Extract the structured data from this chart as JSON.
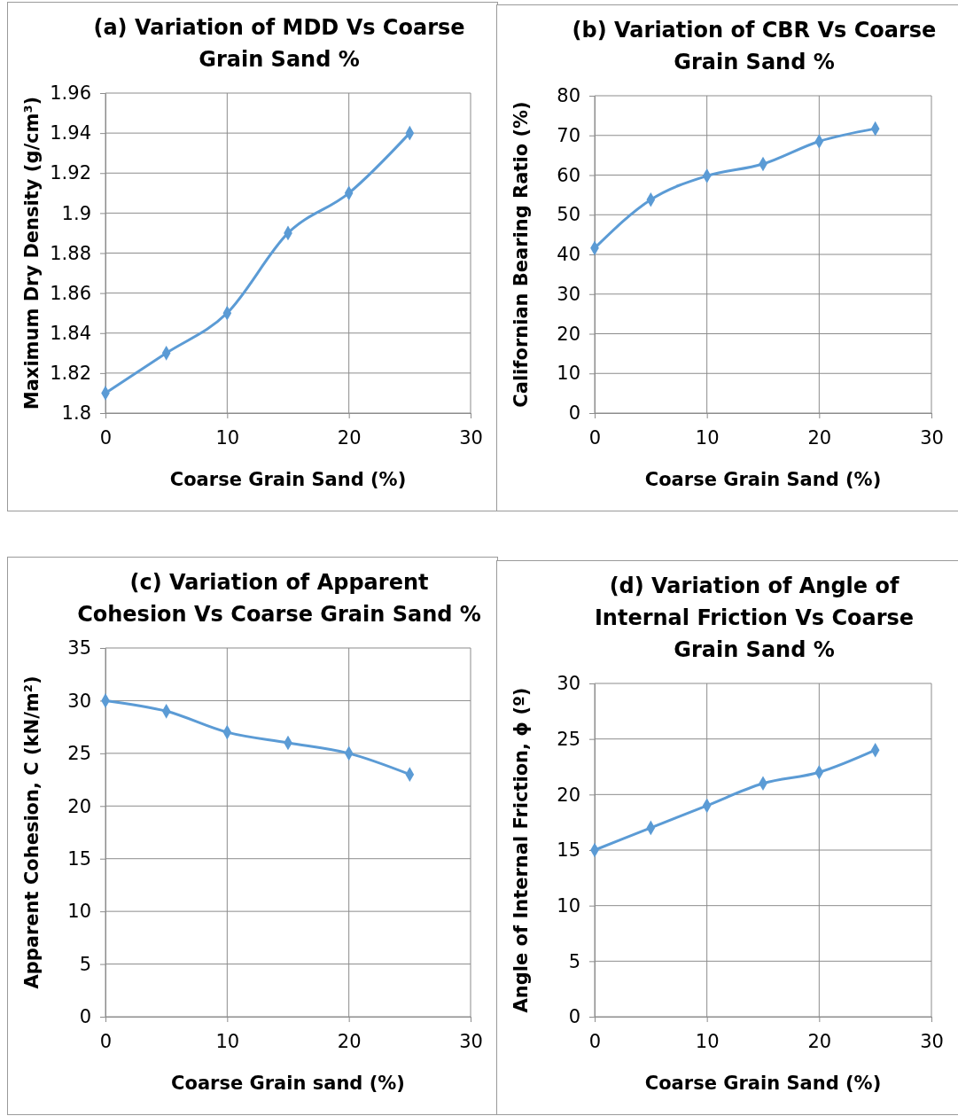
{
  "chart_data": [
    {
      "type": "line",
      "title": "(a) Variation of MDD Vs Coarse Grain Sand %",
      "xlabel": "Coarse Grain Sand (%)",
      "ylabel": "Maximum Dry Density (g/cm³)",
      "x": [
        0,
        5,
        10,
        15,
        20,
        25
      ],
      "series": [
        {
          "color": "#5b9bd5",
          "values": [
            1.81,
            1.83,
            1.85,
            1.89,
            1.91,
            1.94
          ]
        }
      ],
      "xlim": [
        0,
        30
      ],
      "xticks": [
        0,
        10,
        20,
        30
      ],
      "ylim": [
        1.8,
        1.96
      ],
      "yticks": [
        1.8,
        1.82,
        1.84,
        1.86,
        1.88,
        1.9,
        1.92,
        1.94,
        1.96
      ],
      "grid": true,
      "marker": "diamond",
      "line_style": "solid"
    },
    {
      "type": "line",
      "title": "(b) Variation of CBR Vs Coarse Grain Sand %",
      "xlabel": "Coarse Grain Sand (%)",
      "ylabel": "Californian Bearing Ratio (%)",
      "x": [
        0,
        5,
        10,
        15,
        20,
        25
      ],
      "series": [
        {
          "color": "#5b9bd5",
          "values": [
            41.6,
            53.8,
            59.8,
            62.8,
            68.5,
            71.7
          ]
        }
      ],
      "xlim": [
        0,
        30
      ],
      "xticks": [
        0,
        10,
        20,
        30
      ],
      "ylim": [
        0,
        80
      ],
      "yticks": [
        0,
        10,
        20,
        30,
        40,
        50,
        60,
        70,
        80
      ],
      "grid": true,
      "marker": "diamond",
      "line_style": "solid"
    },
    {
      "type": "line",
      "title": "(c) Variation of Apparent Cohesion Vs Coarse Grain Sand %",
      "xlabel": "Coarse Grain sand (%)",
      "ylabel": "Apparent Cohesion, C  (kN/m²)",
      "x": [
        0,
        5,
        10,
        15,
        20,
        25
      ],
      "series": [
        {
          "color": "#5b9bd5",
          "values": [
            30,
            29,
            27,
            26,
            25,
            23
          ]
        }
      ],
      "xlim": [
        0,
        30
      ],
      "xticks": [
        0,
        10,
        20,
        30
      ],
      "ylim": [
        0,
        35
      ],
      "yticks": [
        0,
        5,
        10,
        15,
        20,
        25,
        30,
        35
      ],
      "grid": true,
      "marker": "diamond",
      "line_style": "solid"
    },
    {
      "type": "line",
      "title": "(d) Variation of Angle of Internal Friction Vs Coarse Grain Sand %",
      "xlabel": "Coarse Grain Sand (%)",
      "ylabel": "Angle of Internal Friction, ϕ (º)",
      "x": [
        0,
        5,
        10,
        15,
        20,
        25
      ],
      "series": [
        {
          "color": "#5b9bd5",
          "values": [
            15,
            17,
            19,
            21,
            22,
            24
          ]
        }
      ],
      "xlim": [
        0,
        30
      ],
      "xticks": [
        0,
        10,
        20,
        30
      ],
      "ylim": [
        0,
        30
      ],
      "yticks": [
        0,
        5,
        10,
        15,
        20,
        25,
        30
      ],
      "grid": true,
      "marker": "diamond",
      "line_style": "solid"
    }
  ]
}
